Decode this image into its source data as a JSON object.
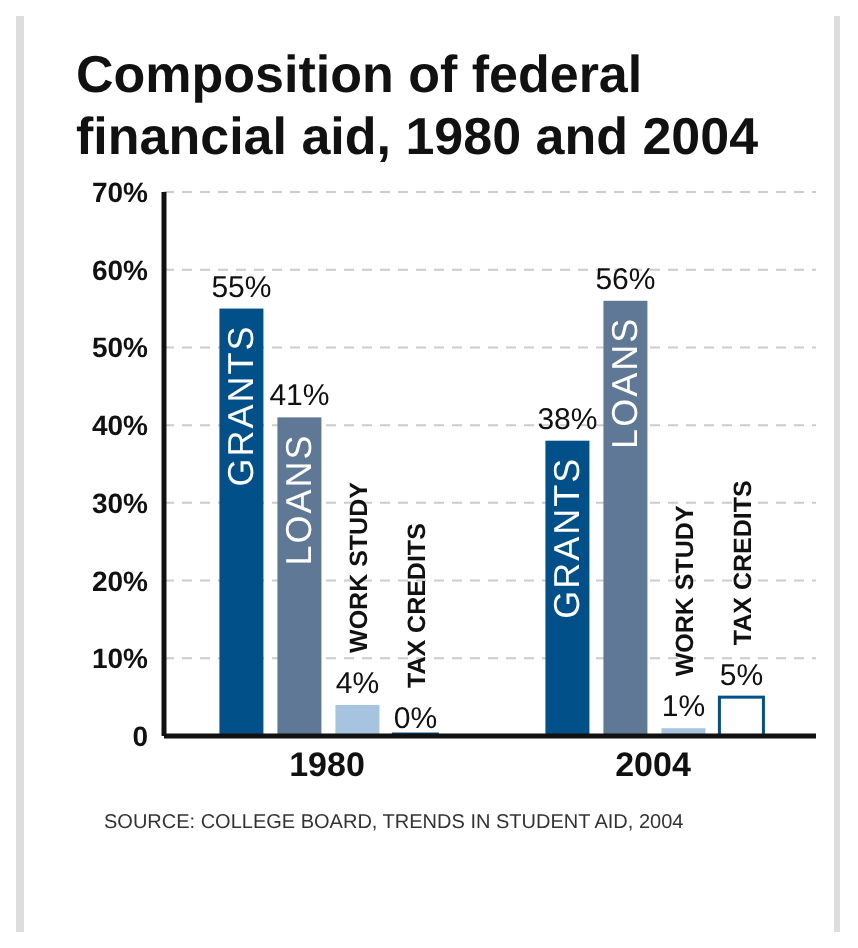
{
  "chart_data": {
    "type": "bar",
    "title": "Composition of federal financial aid, 1980 and 2004",
    "categories": [
      "1980",
      "2004"
    ],
    "series": [
      {
        "name": "GRANTS",
        "color": "#02508a",
        "values": [
          55,
          38
        ],
        "value_labels": [
          "55%",
          "38%"
        ]
      },
      {
        "name": "LOANS",
        "color": "#5f7896",
        "values": [
          41,
          56
        ],
        "value_labels": [
          "41%",
          "56%"
        ]
      },
      {
        "name": "WORK STUDY",
        "color": "#a6c4e0",
        "values": [
          4,
          1
        ],
        "value_labels": [
          "4%",
          "1%"
        ]
      },
      {
        "name": "TAX CREDITS",
        "color": "#ffffff",
        "values": [
          0,
          5
        ],
        "value_labels": [
          "0%",
          "5%"
        ]
      }
    ],
    "ylim": [
      0,
      70
    ],
    "yticks": [
      0,
      {
        "value": 10,
        "label": "10%"
      },
      {
        "value": 20,
        "label": "20%"
      },
      {
        "value": 30,
        "label": "30%"
      },
      {
        "value": 40,
        "label": "40%"
      },
      {
        "value": 50,
        "label": "50%"
      },
      {
        "value": 60,
        "label": "60%"
      },
      {
        "value": 70,
        "label": "70%"
      }
    ],
    "grid": "y",
    "legend": false,
    "annotations": [
      "SOURCE: COLLEGE BOARD, TRENDS IN STUDENT AID, 2004"
    ]
  }
}
